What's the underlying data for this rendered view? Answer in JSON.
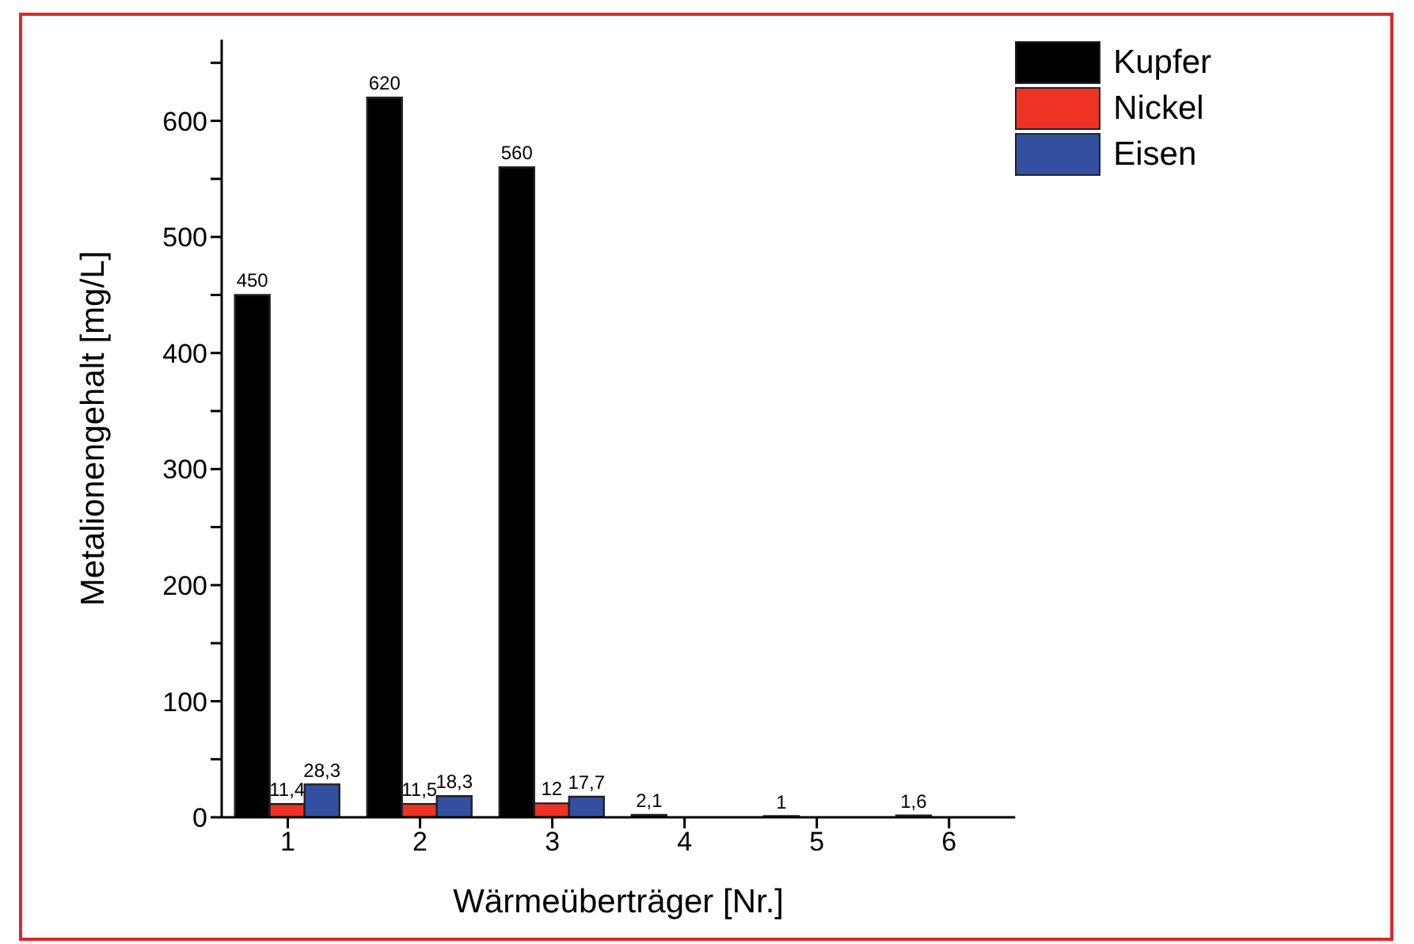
{
  "chart_data": {
    "type": "bar",
    "xlabel": "Wärmeüberträger [Nr.]",
    "ylabel": "Metalionengehalt [mg/L]",
    "categories": [
      "1",
      "2",
      "3",
      "4",
      "5",
      "6"
    ],
    "series": [
      {
        "name": "Kupfer",
        "color": "#000000",
        "values": [
          450,
          620,
          560,
          2.1,
          1,
          1.6
        ],
        "value_labels": [
          "450",
          "620",
          "560",
          "2,1",
          "1",
          "1,6"
        ]
      },
      {
        "name": "Nickel",
        "color": "#ee3224",
        "values": [
          11.4,
          11.5,
          12,
          null,
          null,
          null
        ],
        "value_labels": [
          "11,4",
          "11,5",
          "12",
          null,
          null,
          null
        ]
      },
      {
        "name": "Eisen",
        "color": "#3350a0",
        "values": [
          28.3,
          18.3,
          17.7,
          null,
          null,
          null
        ],
        "value_labels": [
          "28,3",
          "18,3",
          "17,7",
          null,
          null,
          null
        ]
      }
    ],
    "ylim": [
      0,
      670
    ],
    "yticks": [
      0,
      {
        "value": 50,
        "label": null
      },
      100,
      {
        "value": 150,
        "label": null
      },
      200,
      {
        "value": 250,
        "label": null
      },
      300,
      {
        "value": 350,
        "label": null
      },
      400,
      {
        "value": 450,
        "label": null
      },
      500,
      {
        "value": 550,
        "label": null
      },
      600,
      {
        "value": 650,
        "label": null
      }
    ],
    "grid": false,
    "legend": "top right"
  }
}
